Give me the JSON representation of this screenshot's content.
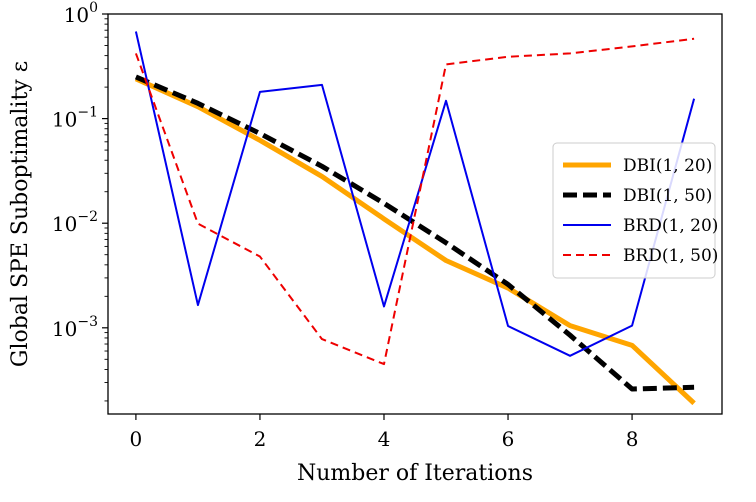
{
  "chart_data": {
    "type": "line",
    "xlabel": "Number of Iterations",
    "ylabel": "Global SPE Suboptimality ε",
    "yscale": "log",
    "xlim": [
      -0.45,
      9.45
    ],
    "ylim": [
      0.00015,
      1.0
    ],
    "x_ticks": [
      {
        "value": 0,
        "label": "0"
      },
      {
        "value": 2,
        "label": "2"
      },
      {
        "value": 4,
        "label": "4"
      },
      {
        "value": 6,
        "label": "6"
      },
      {
        "value": 8,
        "label": "8"
      }
    ],
    "y_ticks": [
      {
        "value": 0.001,
        "base": "10",
        "exp": "−3"
      },
      {
        "value": 0.01,
        "base": "10",
        "exp": "−2"
      },
      {
        "value": 0.1,
        "base": "10",
        "exp": "−1"
      },
      {
        "value": 1.0,
        "base": "10",
        "exp": "0"
      }
    ],
    "legend_position": "center-right",
    "x": [
      0,
      1,
      2,
      3,
      4,
      5,
      6,
      7,
      8,
      9
    ],
    "series": [
      {
        "name": "DBI(1, 20)",
        "color": "#ffa500",
        "style": "solid-thick",
        "values": [
          0.24,
          0.13,
          0.062,
          0.028,
          0.011,
          0.0044,
          0.0024,
          0.00105,
          0.00068,
          0.00019
        ]
      },
      {
        "name": "DBI(1, 50)",
        "color": "#000000",
        "style": "dashed-thick",
        "values": [
          0.25,
          0.14,
          0.072,
          0.035,
          0.0155,
          0.0065,
          0.0026,
          0.00085,
          0.00026,
          0.00027
        ]
      },
      {
        "name": "BRD(1, 20)",
        "color": "#0000ee",
        "style": "solid-thin",
        "values": [
          0.68,
          0.00165,
          0.18,
          0.21,
          0.0016,
          0.148,
          0.00104,
          0.00054,
          0.00105,
          0.155
        ]
      },
      {
        "name": "BRD(1, 50)",
        "color": "#ee0000",
        "style": "dashed-thin",
        "values": [
          0.42,
          0.0099,
          0.0048,
          0.00078,
          0.00045,
          0.33,
          0.39,
          0.42,
          0.49,
          0.58
        ]
      }
    ]
  }
}
